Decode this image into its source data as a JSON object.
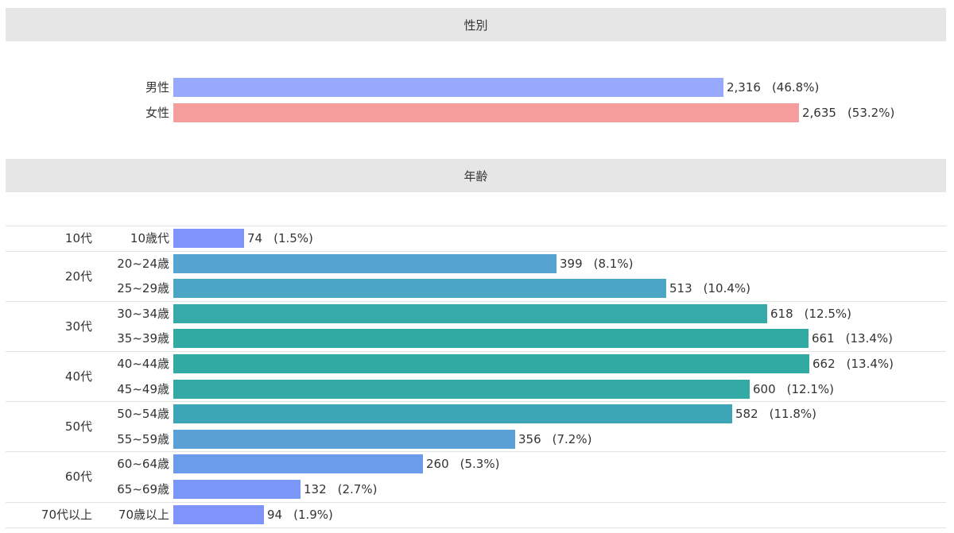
{
  "sections": {
    "gender_title": "性別",
    "age_title": "年齢"
  },
  "chart_data": [
    {
      "type": "bar",
      "orientation": "horizontal",
      "title": "性別",
      "categories": [
        "男性",
        "女性"
      ],
      "values": [
        2316,
        2635
      ],
      "value_labels": [
        "2,316",
        "2,635"
      ],
      "percent_labels": [
        "(46.8%)",
        "(53.2%)"
      ],
      "colors": [
        "#98a8fc",
        "#f59c9c"
      ],
      "xlim": [
        0,
        2635
      ]
    },
    {
      "type": "bar",
      "orientation": "horizontal",
      "title": "年齢",
      "groups": [
        "10代",
        "20代",
        "30代",
        "40代",
        "50代",
        "60代",
        "70代以上"
      ],
      "categories": [
        "10歳代",
        "20~24歳",
        "25~29歳",
        "30~34歳",
        "35~39歳",
        "40~44歳",
        "45~49歳",
        "50~54歳",
        "55~59歳",
        "60~64歳",
        "65~69歳",
        "70歳以上"
      ],
      "category_group_index": [
        0,
        1,
        1,
        2,
        2,
        3,
        3,
        4,
        4,
        5,
        5,
        6
      ],
      "values": [
        74,
        399,
        513,
        618,
        661,
        662,
        600,
        582,
        356,
        260,
        132,
        94
      ],
      "value_labels": [
        "74",
        "399",
        "513",
        "618",
        "661",
        "662",
        "600",
        "582",
        "356",
        "260",
        "132",
        "94"
      ],
      "percent_labels": [
        "(1.5%)",
        "(8.1%)",
        "(10.4%)",
        "(12.5%)",
        "(13.4%)",
        "(13.4%)",
        "(12.1%)",
        "(11.8%)",
        "(7.2%)",
        "(5.3%)",
        "(2.7%)",
        "(1.9%)"
      ],
      "colors": [
        "#7f93fb",
        "#55a3d0",
        "#4aa6c4",
        "#35aaa8",
        "#31aaa3",
        "#31aaa3",
        "#34aaa6",
        "#3ca6b6",
        "#5aa0d4",
        "#6b9cec",
        "#7a96f8",
        "#7f93fb"
      ],
      "xlim": [
        0,
        662
      ]
    }
  ]
}
